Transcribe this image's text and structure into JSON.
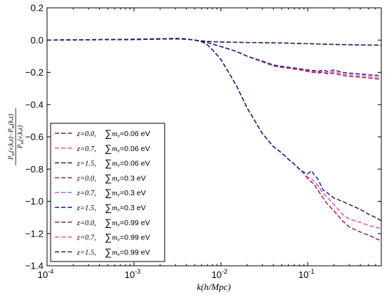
{
  "chart_data": {
    "type": "line",
    "xscale": "log",
    "xlim": [
      0.0001,
      0.7
    ],
    "ylim": [
      -1.4,
      0.2
    ],
    "xlabel": "k(h/Mpc)",
    "ylabel": "[P_m(ν,k,z) − P_m(k,z)] / P_m(ν,k,z)",
    "x_ticks": [
      {
        "value": 0.0001,
        "label": "10^-4",
        "base": "10",
        "exp": "-4"
      },
      {
        "value": 0.001,
        "label": "10^-3",
        "base": "10",
        "exp": "-3"
      },
      {
        "value": 0.01,
        "label": "10^-2",
        "base": "10",
        "exp": "-2"
      },
      {
        "value": 0.1,
        "label": "10^-1",
        "base": "10",
        "exp": "-1"
      }
    ],
    "y_ticks": [
      0.2,
      0.0,
      -0.2,
      -0.4,
      -0.6,
      -0.8,
      -1.0,
      -1.2,
      -1.4
    ],
    "y_tick_labels": [
      "0.2",
      "0.0",
      "−0.2",
      "−0.4",
      "−0.6",
      "−0.8",
      "−1.0",
      "−1.2",
      "−1.4"
    ],
    "legend_position": "lower-left",
    "grid": false,
    "line_style": "dashed",
    "k": [
      0.0001,
      0.001,
      0.002,
      0.003,
      0.004,
      0.005,
      0.006,
      0.007,
      0.008,
      0.01,
      0.015,
      0.02,
      0.03,
      0.04,
      0.05,
      0.06,
      0.07,
      0.08,
      0.09,
      0.1,
      0.11,
      0.12,
      0.13,
      0.15,
      0.17,
      0.2,
      0.25,
      0.3,
      0.4,
      0.5,
      0.6,
      0.7
    ],
    "series": [
      {
        "name": "z=0.0, Σm_ν=0.06 eV",
        "legend_z": "z=0.0,",
        "legend_sum": "=0.06 eV",
        "color": "#a0103a",
        "values": [
          0.0,
          0.003,
          0.006,
          0.007,
          0.005,
          0.0,
          -0.005,
          -0.008,
          -0.01,
          -0.012,
          -0.014,
          -0.015,
          -0.016,
          -0.017,
          -0.018,
          -0.019,
          -0.02,
          -0.021,
          -0.022,
          -0.022,
          -0.023,
          -0.023,
          -0.024,
          -0.025,
          -0.026,
          -0.027,
          -0.028,
          -0.029,
          -0.03,
          -0.031,
          -0.031,
          -0.032
        ]
      },
      {
        "name": "z=0.7, Σm_ν=0.06 eV",
        "legend_z": "z=0.7,",
        "legend_sum": "=0.06 eV",
        "color": "#e83cd0",
        "values": [
          0.0,
          0.003,
          0.006,
          0.007,
          0.005,
          0.0,
          -0.005,
          -0.008,
          -0.01,
          -0.012,
          -0.014,
          -0.015,
          -0.016,
          -0.017,
          -0.018,
          -0.019,
          -0.02,
          -0.021,
          -0.022,
          -0.022,
          -0.023,
          -0.023,
          -0.024,
          -0.025,
          -0.026,
          -0.027,
          -0.028,
          -0.029,
          -0.03,
          -0.031,
          -0.031,
          -0.032
        ]
      },
      {
        "name": "z=1.5, Σm_ν=0.06 eV",
        "legend_z": "z=1.5,",
        "legend_sum": "=0.06 eV",
        "color": "#101a6e",
        "values": [
          0.0,
          0.003,
          0.006,
          0.007,
          0.005,
          0.0,
          -0.005,
          -0.008,
          -0.01,
          -0.012,
          -0.014,
          -0.015,
          -0.016,
          -0.017,
          -0.018,
          -0.019,
          -0.02,
          -0.021,
          -0.022,
          -0.022,
          -0.023,
          -0.023,
          -0.024,
          -0.025,
          -0.026,
          -0.027,
          -0.028,
          -0.029,
          -0.03,
          -0.031,
          -0.031,
          -0.032
        ]
      },
      {
        "name": "z=0.0, Σm_ν=0.3 eV",
        "legend_z": "z=0.0,",
        "legend_sum": "=0.3 eV",
        "color": "#a0103a",
        "values": [
          0.0,
          0.005,
          0.008,
          0.01,
          0.007,
          0.0,
          -0.008,
          -0.015,
          -0.025,
          -0.04,
          -0.07,
          -0.1,
          -0.135,
          -0.16,
          -0.17,
          -0.175,
          -0.18,
          -0.185,
          -0.19,
          -0.195,
          -0.2,
          -0.2,
          -0.205,
          -0.2,
          -0.21,
          -0.205,
          -0.22,
          -0.225,
          -0.23,
          -0.235,
          -0.24,
          -0.245
        ]
      },
      {
        "name": "z=0.7, Σm_ν=0.3 eV",
        "legend_z": "z=0.7,",
        "legend_sum": "=0.3 eV",
        "color": "#e83cd0",
        "values": [
          0.0,
          0.005,
          0.008,
          0.01,
          0.007,
          0.0,
          -0.008,
          -0.015,
          -0.025,
          -0.04,
          -0.07,
          -0.1,
          -0.133,
          -0.157,
          -0.167,
          -0.172,
          -0.177,
          -0.182,
          -0.187,
          -0.19,
          -0.195,
          -0.195,
          -0.2,
          -0.195,
          -0.205,
          -0.195,
          -0.21,
          -0.215,
          -0.22,
          -0.225,
          -0.23,
          -0.233
        ]
      },
      {
        "name": "z=1.5, Σm_ν=0.3 eV",
        "legend_z": "z=1.5,",
        "legend_sum": "=0.3 eV",
        "color": "#101a6e",
        "values": [
          0.0,
          0.005,
          0.008,
          0.01,
          0.007,
          0.0,
          -0.008,
          -0.015,
          -0.025,
          -0.04,
          -0.07,
          -0.1,
          -0.13,
          -0.154,
          -0.163,
          -0.168,
          -0.173,
          -0.178,
          -0.182,
          -0.185,
          -0.19,
          -0.188,
          -0.195,
          -0.185,
          -0.195,
          -0.185,
          -0.2,
          -0.205,
          -0.21,
          -0.215,
          -0.218,
          -0.22
        ]
      },
      {
        "name": "z=0.0, Σm_ν=0.99 eV",
        "legend_z": "z=0.0,",
        "legend_sum": "=0.99 eV",
        "color": "#a0103a",
        "values": [
          0.0,
          0.005,
          0.008,
          0.01,
          0.007,
          0.0,
          -0.01,
          -0.03,
          -0.06,
          -0.12,
          -0.28,
          -0.42,
          -0.58,
          -0.66,
          -0.7,
          -0.74,
          -0.77,
          -0.8,
          -0.83,
          -0.86,
          -0.88,
          -0.9,
          -0.93,
          -0.98,
          -1.02,
          -1.06,
          -1.12,
          -1.16,
          -1.19,
          -1.21,
          -1.23,
          -1.245
        ]
      },
      {
        "name": "z=0.7, Σm_ν=0.99 eV",
        "legend_z": "z=0.7,",
        "legend_sum": "=0.99 eV",
        "color": "#e83cd0",
        "values": [
          0.0,
          0.005,
          0.008,
          0.01,
          0.007,
          0.0,
          -0.01,
          -0.03,
          -0.06,
          -0.12,
          -0.28,
          -0.42,
          -0.58,
          -0.66,
          -0.7,
          -0.74,
          -0.77,
          -0.8,
          -0.83,
          -0.85,
          -0.86,
          -0.88,
          -0.9,
          -0.95,
          -0.98,
          -1.02,
          -1.08,
          -1.11,
          -1.13,
          -1.15,
          -1.16,
          -1.17
        ]
      },
      {
        "name": "z=1.5, Σm_ν=0.99 eV",
        "legend_z": "z=1.5,",
        "legend_sum": "=0.99 eV",
        "color": "#101a6e",
        "values": [
          0.0,
          0.005,
          0.008,
          0.01,
          0.007,
          0.0,
          -0.01,
          -0.03,
          -0.06,
          -0.12,
          -0.28,
          -0.42,
          -0.58,
          -0.66,
          -0.7,
          -0.74,
          -0.77,
          -0.8,
          -0.82,
          -0.83,
          -0.81,
          -0.84,
          -0.86,
          -0.93,
          -0.95,
          -0.98,
          -1.0,
          -1.02,
          -1.05,
          -1.08,
          -1.1,
          -1.12
        ]
      }
    ]
  }
}
